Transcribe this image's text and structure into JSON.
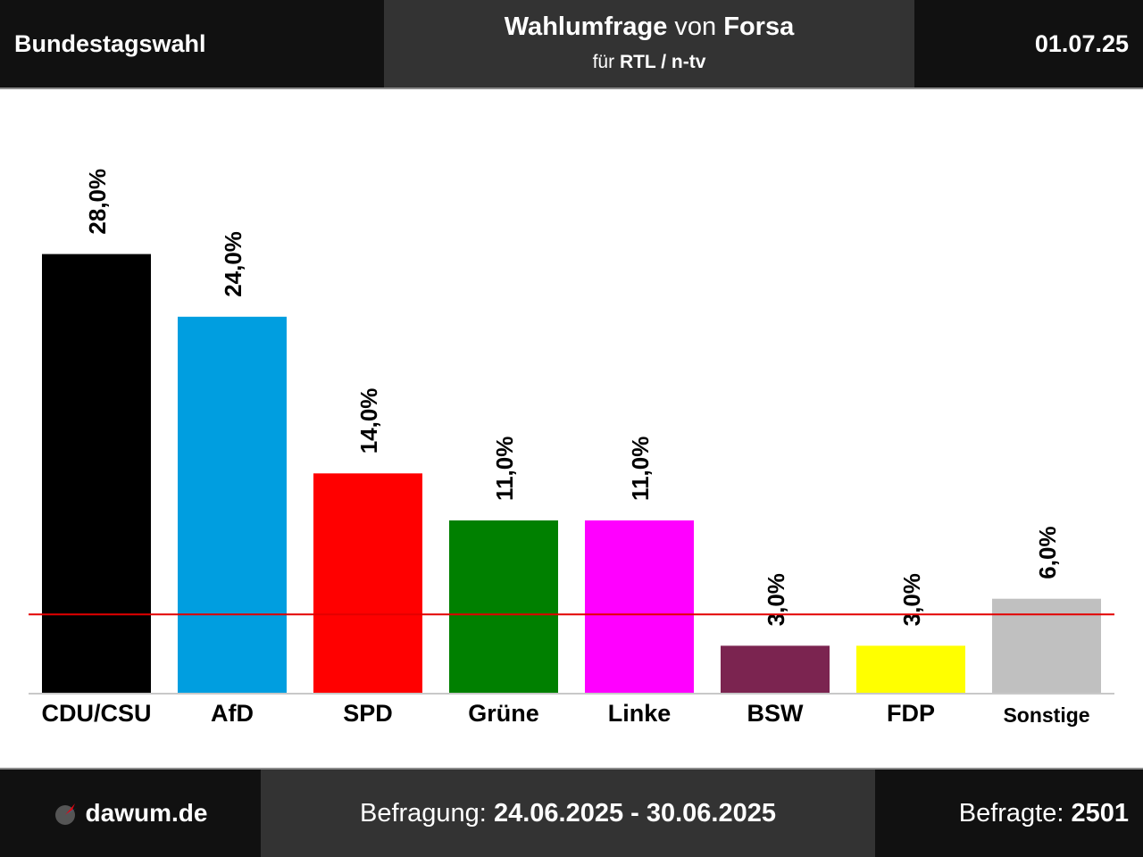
{
  "header": {
    "title": "Bundestagswahl",
    "center_title_bold": "Wahlumfrage",
    "center_title_mid": " von ",
    "center_title_inst": "Forsa",
    "center_sub_prefix": "für ",
    "center_sub_client": "RTL / n-tv",
    "date": "01.07.25"
  },
  "footer": {
    "brand": "dawum.de",
    "survey_prefix": "Befragung: ",
    "survey_period": "24.06.2025 - 30.06.2025",
    "respondents_prefix": "Befragte: ",
    "respondents": "2501"
  },
  "colors": {
    "threshold_line": "#e30000",
    "axis_line": "#c8c8c8"
  },
  "chart_data": {
    "type": "bar",
    "categories": [
      "CDU/CSU",
      "AfD",
      "SPD",
      "Grüne",
      "Linke",
      "BSW",
      "FDP",
      "Sonstige"
    ],
    "values": [
      28.0,
      24.0,
      14.0,
      11.0,
      11.0,
      3.0,
      3.0,
      6.0
    ],
    "value_labels": [
      "28,0%",
      "24,0%",
      "14,0%",
      "11,0%",
      "11,0%",
      "3,0%",
      "3,0%",
      "6,0%"
    ],
    "colors": [
      "#000000",
      "#009ee0",
      "#ff0000",
      "#008000",
      "#ff00ff",
      "#7b2450",
      "#ffff00",
      "#c0c0c0"
    ],
    "threshold": 5,
    "ylim": [
      0,
      28
    ]
  }
}
